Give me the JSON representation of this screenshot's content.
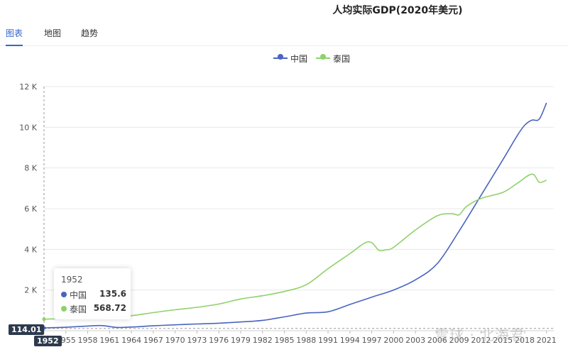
{
  "page_title": "人均实际GDP(2020年美元)",
  "tabs": [
    {
      "label": "图表",
      "active": true
    },
    {
      "label": "地图",
      "active": false
    },
    {
      "label": "趋势",
      "active": false
    }
  ],
  "legend": [
    {
      "name": "中国",
      "color": "#4a64bf"
    },
    {
      "name": "泰国",
      "color": "#8fd16a"
    }
  ],
  "tooltip": {
    "year": "1952",
    "rows": [
      {
        "name": "中国",
        "value": "135.6",
        "color": "#4a64bf"
      },
      {
        "name": "泰国",
        "value": "568.72",
        "color": "#8fd16a"
      }
    ]
  },
  "crosshair": {
    "y_label": "114.01",
    "x_label": "1952"
  },
  "watermark": "雪球 · 北海君",
  "chart_data": {
    "type": "line",
    "title": "人均实际GDP(2020年美元)",
    "xlabel": "",
    "ylabel": "",
    "xlim": [
      1952,
      2022
    ],
    "ylim": [
      0,
      12000
    ],
    "ytick_values": [
      2000,
      4000,
      6000,
      8000,
      10000,
      12000
    ],
    "ytick_labels": [
      "2 K",
      "4 K",
      "6 K",
      "8 K",
      "10 K",
      "12 K"
    ],
    "xtick_values": [
      1952,
      1955,
      1958,
      1961,
      1964,
      1967,
      1970,
      1973,
      1976,
      1979,
      1982,
      1985,
      1988,
      1991,
      1994,
      1997,
      2000,
      2003,
      2006,
      2009,
      2012,
      2015,
      2018,
      2021
    ],
    "xtick_labels": [
      "1952",
      "1955",
      "1958",
      "1961",
      "1964",
      "1967",
      "1970",
      "1973",
      "1976",
      "1979",
      "1982",
      "1985",
      "1988",
      "1991",
      "1994",
      "1997",
      "2000",
      "2003",
      "2006",
      "2009",
      "2012",
      "2015",
      "2018",
      "2021"
    ],
    "grid": true,
    "series": [
      {
        "name": "中国",
        "color": "#4a64bf",
        "x": [
          1952,
          1955,
          1958,
          1960,
          1962,
          1964,
          1967,
          1970,
          1973,
          1976,
          1979,
          1982,
          1985,
          1988,
          1991,
          1994,
          1997,
          2000,
          2003,
          2006,
          2009,
          2012,
          2015,
          2017,
          2018,
          2019,
          2020,
          2021
        ],
        "y": [
          135.6,
          170,
          230,
          250,
          160,
          180,
          240,
          290,
          330,
          370,
          430,
          510,
          680,
          870,
          930,
          1290,
          1650,
          2000,
          2500,
          3300,
          4900,
          6650,
          8400,
          9600,
          10100,
          10350,
          10400,
          11200
        ]
      },
      {
        "name": "泰国",
        "color": "#8fd16a",
        "x": [
          1952,
          1955,
          1958,
          1961,
          1964,
          1967,
          1970,
          1973,
          1976,
          1979,
          1982,
          1985,
          1988,
          1991,
          1994,
          1996,
          1997,
          1998,
          1999,
          2000,
          2003,
          2006,
          2008,
          2009,
          2010,
          2012,
          2015,
          2017,
          2019,
          2020,
          2021
        ],
        "y": [
          568.72,
          590,
          600,
          640,
          740,
          890,
          1030,
          1150,
          1310,
          1560,
          1720,
          1930,
          2260,
          3050,
          3790,
          4300,
          4330,
          3950,
          3980,
          4100,
          4950,
          5650,
          5750,
          5700,
          6100,
          6500,
          6800,
          7250,
          7700,
          7300,
          7400
        ]
      }
    ]
  }
}
